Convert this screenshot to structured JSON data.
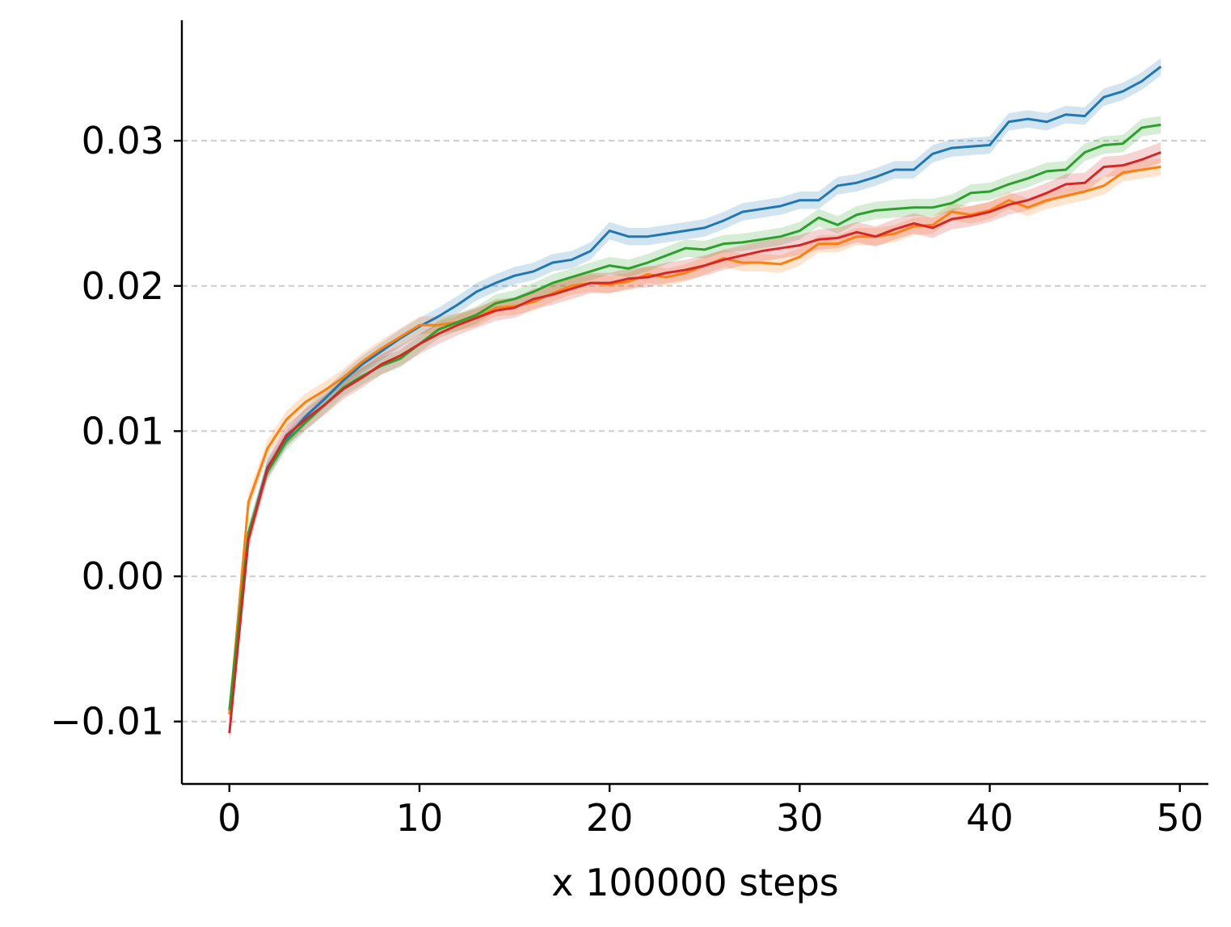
{
  "chart_data": {
    "type": "line",
    "title": "",
    "xlabel": "x 100000 steps",
    "ylabel": "",
    "xlim": [
      -2.5,
      51.5
    ],
    "ylim": [
      -0.0143,
      0.0383
    ],
    "x_ticks": [
      0,
      10,
      20,
      30,
      40,
      50
    ],
    "x_tick_labels": [
      "0",
      "10",
      "20",
      "30",
      "40",
      "50"
    ],
    "y_ticks": [
      -0.01,
      0.0,
      0.01,
      0.02,
      0.03
    ],
    "y_tick_labels": [
      "−0.01",
      "0.00",
      "0.01",
      "0.02",
      "0.03"
    ],
    "grid": "horizontal-dashed",
    "legend": "none",
    "x": [
      0,
      1,
      2,
      3,
      4,
      5,
      6,
      7,
      8,
      9,
      10,
      11,
      12,
      13,
      14,
      15,
      16,
      17,
      18,
      19,
      20,
      21,
      22,
      23,
      24,
      25,
      26,
      27,
      28,
      29,
      30,
      31,
      32,
      33,
      34,
      35,
      36,
      37,
      38,
      39,
      40,
      41,
      42,
      43,
      44,
      45,
      46,
      47,
      48,
      49
    ],
    "series": [
      {
        "name": "blue",
        "color": "#1f77b4",
        "band_halfwidth": 0.0006,
        "values": [
          -0.0095,
          0.0028,
          0.0075,
          0.0095,
          0.011,
          0.0122,
          0.0135,
          0.0146,
          0.0155,
          0.0164,
          0.0172,
          0.0179,
          0.0187,
          0.0196,
          0.0202,
          0.0207,
          0.021,
          0.0216,
          0.0218,
          0.0224,
          0.0238,
          0.0234,
          0.0234,
          0.0236,
          0.0238,
          0.024,
          0.0245,
          0.0251,
          0.0253,
          0.0255,
          0.0259,
          0.0259,
          0.0269,
          0.0271,
          0.0275,
          0.028,
          0.028,
          0.0291,
          0.0295,
          0.0296,
          0.0297,
          0.0313,
          0.0315,
          0.0313,
          0.0318,
          0.0317,
          0.033,
          0.0334,
          0.0341,
          0.0351
        ]
      },
      {
        "name": "orange",
        "color": "#ff7f0e",
        "band_halfwidth": 0.0006,
        "values": [
          -0.0095,
          0.0051,
          0.0088,
          0.0108,
          0.012,
          0.0128,
          0.0137,
          0.0148,
          0.0157,
          0.0165,
          0.0173,
          0.0173,
          0.0175,
          0.0178,
          0.0185,
          0.0186,
          0.0189,
          0.0195,
          0.02,
          0.0202,
          0.0201,
          0.0203,
          0.0208,
          0.0206,
          0.0209,
          0.0214,
          0.0219,
          0.0216,
          0.0216,
          0.0215,
          0.022,
          0.0229,
          0.0229,
          0.0234,
          0.0234,
          0.0236,
          0.0241,
          0.0242,
          0.0251,
          0.0249,
          0.0252,
          0.0259,
          0.0254,
          0.0259,
          0.0262,
          0.0265,
          0.0269,
          0.0278,
          0.028,
          0.0282
        ]
      },
      {
        "name": "green",
        "color": "#2ca02c",
        "band_halfwidth": 0.0006,
        "values": [
          -0.0092,
          0.003,
          0.0072,
          0.0093,
          0.0106,
          0.0118,
          0.013,
          0.0138,
          0.0145,
          0.015,
          0.016,
          0.017,
          0.0175,
          0.018,
          0.0188,
          0.0191,
          0.0196,
          0.0202,
          0.0206,
          0.021,
          0.0214,
          0.0212,
          0.0216,
          0.0221,
          0.0226,
          0.0225,
          0.0229,
          0.023,
          0.0232,
          0.0234,
          0.0238,
          0.0247,
          0.0242,
          0.0249,
          0.0252,
          0.0253,
          0.0254,
          0.0254,
          0.0257,
          0.0264,
          0.0265,
          0.027,
          0.0274,
          0.0279,
          0.028,
          0.0292,
          0.0297,
          0.0298,
          0.0309,
          0.0311
        ]
      },
      {
        "name": "red",
        "color": "#d62728",
        "band_halfwidth": 0.0007,
        "values": [
          -0.0108,
          0.0025,
          0.0074,
          0.0097,
          0.0108,
          0.0118,
          0.0129,
          0.0137,
          0.0146,
          0.0152,
          0.016,
          0.0167,
          0.0173,
          0.0178,
          0.0183,
          0.0185,
          0.0191,
          0.0194,
          0.0198,
          0.0202,
          0.0202,
          0.0205,
          0.0206,
          0.0209,
          0.0211,
          0.0214,
          0.0218,
          0.0221,
          0.0224,
          0.0226,
          0.0228,
          0.0232,
          0.0233,
          0.0237,
          0.0234,
          0.0239,
          0.0243,
          0.024,
          0.0246,
          0.0248,
          0.0251,
          0.0256,
          0.0259,
          0.0264,
          0.027,
          0.0271,
          0.0282,
          0.0283,
          0.0287,
          0.0292
        ]
      }
    ]
  }
}
